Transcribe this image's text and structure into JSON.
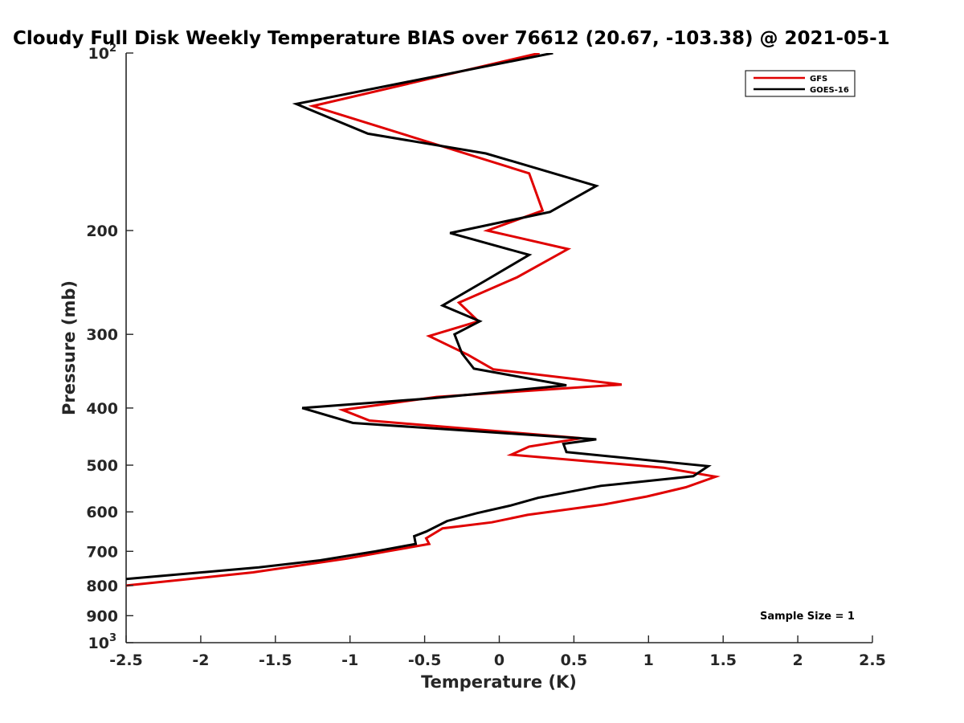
{
  "chart_data": {
    "type": "line",
    "title": "Cloudy Full Disk Weekly Temperature BIAS over 76612 (20.67, -103.38) @ 2021-05-1",
    "xlabel": "Temperature (K)",
    "ylabel": "Pressure (mb)",
    "xlim": [
      -2.5,
      2.5
    ],
    "ylim": [
      100,
      1000
    ],
    "y_scale": "log",
    "y_reversed": true,
    "grid": false,
    "legend_position": "top-right",
    "x_ticks": [
      -2.5,
      -2,
      -1.5,
      -1,
      -0.5,
      0,
      0.5,
      1,
      1.5,
      2,
      2.5
    ],
    "x_tick_labels": [
      "-2.5",
      "-2",
      "-1.5",
      "-1",
      "-0.5",
      "0",
      "0.5",
      "1",
      "1.5",
      "2",
      "2.5"
    ],
    "y_ticks": [
      200,
      300,
      400,
      500,
      600,
      700,
      800,
      900
    ],
    "y_tick_labels": [
      "200",
      "300",
      "400",
      "500",
      "600",
      "700",
      "800",
      "900"
    ],
    "y_end_ticks": [
      {
        "value": 100,
        "base": "10",
        "exp": "2"
      },
      {
        "value": 1000,
        "base": "10",
        "exp": "3"
      }
    ],
    "annotation": "Sample Size = 1",
    "series": [
      {
        "name": "GFS",
        "color": "#e00000",
        "points": [
          [
            0.27,
            100
          ],
          [
            -1.25,
            123
          ],
          [
            -1.03,
            128
          ],
          [
            0.2,
            160
          ],
          [
            0.29,
            185
          ],
          [
            -0.08,
            200
          ],
          [
            0.46,
            215
          ],
          [
            0.12,
            240
          ],
          [
            -0.27,
            265
          ],
          [
            -0.14,
            285
          ],
          [
            -0.47,
            302
          ],
          [
            -0.21,
            325
          ],
          [
            -0.04,
            344
          ],
          [
            0.82,
            365
          ],
          [
            -0.42,
            383
          ],
          [
            -1.05,
            403
          ],
          [
            -0.87,
            420
          ],
          [
            0.55,
            450
          ],
          [
            0.2,
            465
          ],
          [
            0.08,
            480
          ],
          [
            1.1,
            505
          ],
          [
            1.45,
            523
          ],
          [
            1.25,
            545
          ],
          [
            0.99,
            565
          ],
          [
            0.7,
            583
          ],
          [
            0.19,
            607
          ],
          [
            -0.05,
            625
          ],
          [
            -0.38,
            640
          ],
          [
            -0.49,
            665
          ],
          [
            -0.47,
            680
          ],
          [
            -0.75,
            700
          ],
          [
            -1.02,
            720
          ],
          [
            -1.65,
            760
          ],
          [
            -2.5,
            800
          ]
        ]
      },
      {
        "name": "GOES-16",
        "color": "#000000",
        "points": [
          [
            0.36,
            100
          ],
          [
            -1.36,
            122
          ],
          [
            -0.88,
            137
          ],
          [
            -0.09,
            148
          ],
          [
            0.65,
            168
          ],
          [
            0.34,
            186
          ],
          [
            -0.33,
            202
          ],
          [
            0.2,
            220
          ],
          [
            -0.09,
            243
          ],
          [
            -0.38,
            268
          ],
          [
            -0.13,
            285
          ],
          [
            -0.3,
            300
          ],
          [
            -0.25,
            323
          ],
          [
            -0.17,
            343
          ],
          [
            0.45,
            366
          ],
          [
            -0.45,
            385
          ],
          [
            -1.32,
            400
          ],
          [
            -0.98,
            424
          ],
          [
            0.65,
            452
          ],
          [
            0.43,
            460
          ],
          [
            0.45,
            475
          ],
          [
            1.4,
            502
          ],
          [
            1.3,
            522
          ],
          [
            0.68,
            542
          ],
          [
            0.26,
            568
          ],
          [
            0.08,
            585
          ],
          [
            -0.15,
            603
          ],
          [
            -0.35,
            622
          ],
          [
            -0.49,
            648
          ],
          [
            -0.57,
            660
          ],
          [
            -0.56,
            680
          ],
          [
            -0.83,
            700
          ],
          [
            -1.2,
            725
          ],
          [
            -1.61,
            745
          ],
          [
            -2.5,
            780
          ]
        ]
      }
    ]
  }
}
